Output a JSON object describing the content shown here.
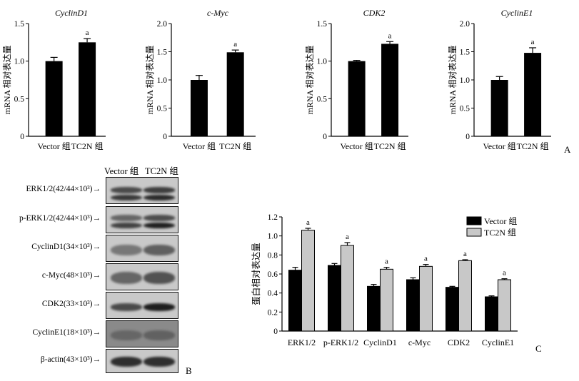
{
  "panels": {
    "A": {
      "letter": "A",
      "charts": [
        {
          "title": "CyclinD1",
          "ylabel": "mRNA 相对表达量",
          "ylim": [
            0,
            1.5
          ],
          "ticks": [
            "0",
            "0.5",
            "1.0",
            "1.5"
          ],
          "type": "bar",
          "categories": [
            "Vector 组",
            "TC2N 组"
          ],
          "values": [
            1.0,
            1.25
          ],
          "errors": [
            0.05,
            0.05
          ],
          "sig": [
            "",
            "a"
          ]
        },
        {
          "title": "c-Myc",
          "ylabel": "mRNA 相对表达量",
          "ylim": [
            0,
            2.0
          ],
          "ticks": [
            "0",
            "0.5",
            "1.0",
            "1.5",
            "2.0"
          ],
          "type": "bar",
          "categories": [
            "Vector 组",
            "TC2N 组"
          ],
          "values": [
            1.0,
            1.49
          ],
          "errors": [
            0.08,
            0.04
          ],
          "sig": [
            "",
            "a"
          ]
        },
        {
          "title": "CDK2",
          "ylabel": "mRNA 相对表达量",
          "ylim": [
            0,
            1.5
          ],
          "ticks": [
            "0",
            "0.5",
            "1.0",
            "1.5"
          ],
          "type": "bar",
          "categories": [
            "Vector 组",
            "TC2N 组"
          ],
          "values": [
            1.0,
            1.23
          ],
          "errors": [
            0.01,
            0.03
          ],
          "sig": [
            "",
            "a"
          ]
        },
        {
          "title": "CyclinE1",
          "ylabel": "mRNA 相对表达量",
          "ylim": [
            0,
            2.0
          ],
          "ticks": [
            "0",
            "0.5",
            "1.0",
            "1.5",
            "2.0"
          ],
          "type": "bar",
          "categories": [
            "Vector 组",
            "TC2N 组"
          ],
          "values": [
            1.0,
            1.48
          ],
          "errors": [
            0.06,
            0.09
          ],
          "sig": [
            "",
            "a"
          ]
        }
      ]
    },
    "B": {
      "letter": "B",
      "columns": [
        "Vector 组",
        "TC2N 组"
      ],
      "rows": [
        "ERK1/2(42/44×10³)→",
        "p-ERK1/2(42/44×10³)→",
        "CyclinD1(34×10³)→",
        "c-Myc(48×10³)→",
        "CDK2(33×10³)→",
        "CyclinE1(18×10³)→",
        "β-actin(43×10³)→"
      ]
    },
    "C": {
      "letter": "C",
      "chart_data": {
        "type": "bar",
        "ylabel": "蛋白相对表达量",
        "ylim": [
          0,
          1.2
        ],
        "ticks": [
          "0",
          "0.2",
          "0.4",
          "0.6",
          "0.8",
          "1.0",
          "1.2"
        ],
        "categories": [
          "ERK1/2",
          "p-ERK1/2",
          "CyclinD1",
          "c-Myc",
          "CDK2",
          "CyclinE1"
        ],
        "series": [
          {
            "name": "Vector 组",
            "color": "#000000",
            "values": [
              0.64,
              0.69,
              0.47,
              0.54,
              0.46,
              0.36
            ],
            "errors": [
              0.03,
              0.02,
              0.02,
              0.02,
              0.01,
              0.01
            ]
          },
          {
            "name": "TC2N 组",
            "color": "#c8c8c8",
            "values": [
              1.06,
              0.9,
              0.65,
              0.68,
              0.74,
              0.54
            ],
            "errors": [
              0.02,
              0.03,
              0.02,
              0.02,
              0.01,
              0.01
            ]
          }
        ],
        "sig_label": "a",
        "legend": "top-right"
      }
    }
  }
}
